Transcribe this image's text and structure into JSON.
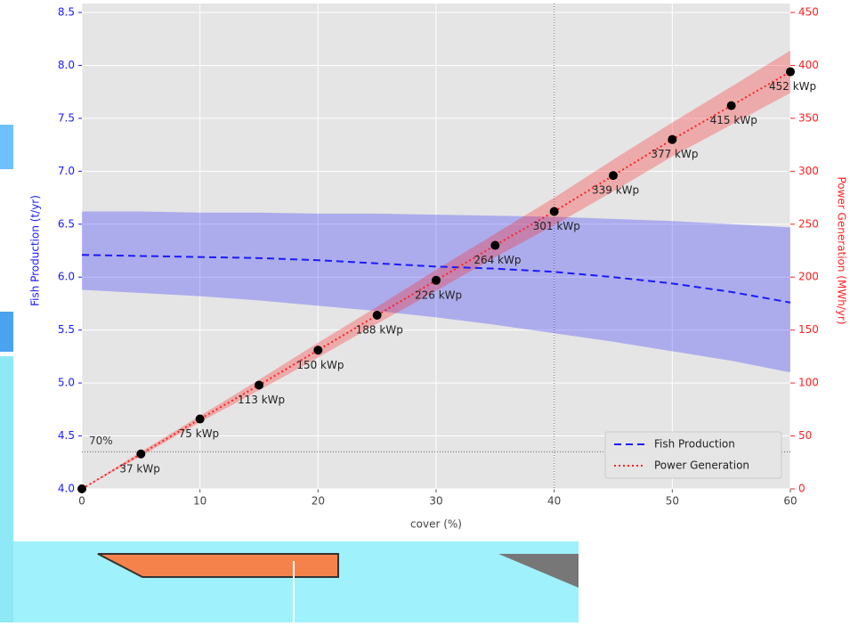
{
  "chart_data": {
    "type": "line",
    "x": [
      0,
      5,
      10,
      15,
      20,
      25,
      30,
      35,
      40,
      45,
      50,
      55,
      60
    ],
    "xlabel": "cover (%)",
    "ylabel": "Fish Production (t/yr)",
    "y2label": "Power Generation (MWh/yr)",
    "xlim": [
      0,
      60
    ],
    "xticks": [
      0,
      10,
      20,
      30,
      40,
      50,
      60
    ],
    "ylim": [
      4.0,
      8.5
    ],
    "yticks": [
      {
        "value": 4.0,
        "label": "4.0"
      },
      4.5,
      {
        "value": 5.0,
        "label": "5.0"
      },
      5.5,
      {
        "value": 6.0,
        "label": "6.0"
      },
      6.5,
      {
        "value": 7.0,
        "label": "7.0"
      },
      7.5,
      {
        "value": 8.0,
        "label": "8.0"
      },
      8.5
    ],
    "y2lim": [
      0,
      450
    ],
    "y2ticks": [
      0,
      50,
      100,
      150,
      200,
      250,
      300,
      350,
      400,
      450
    ],
    "grid": true,
    "legend": "lower right",
    "series": [
      {
        "name": "Fish Production",
        "color": "#1a1aff",
        "style": "dashed",
        "values": [
          6.21,
          6.2,
          6.19,
          6.18,
          6.16,
          6.13,
          6.1,
          6.08,
          6.05,
          6.0,
          5.94,
          5.86,
          5.76
        ],
        "band_upper": [
          6.62,
          6.62,
          6.61,
          6.61,
          6.6,
          6.6,
          6.59,
          6.58,
          6.57,
          6.55,
          6.53,
          6.5,
          6.47
        ],
        "band_lower": [
          5.88,
          5.85,
          5.82,
          5.78,
          5.73,
          5.68,
          5.62,
          5.55,
          5.47,
          5.39,
          5.3,
          5.21,
          5.1
        ]
      },
      {
        "name": "Power Generation",
        "color": "#ff2020",
        "style": "dotted",
        "axis": "y2",
        "values": [
          0,
          33,
          66,
          98,
          131,
          164,
          197,
          230,
          262,
          296,
          330,
          362,
          394
        ],
        "band_upper": [
          0,
          35,
          69,
          103,
          138,
          172,
          207,
          241,
          275,
          311,
          346,
          380,
          414
        ],
        "band_lower": [
          0,
          31,
          63,
          93,
          124,
          156,
          187,
          219,
          249,
          281,
          314,
          344,
          374
        ],
        "point_labels": [
          null,
          "37 kWp",
          "75 kWp",
          "113 kWp",
          "150 kWp",
          "188 kWp",
          "226 kWp",
          "264 kWp",
          "301 kWp",
          "339 kWp",
          "377 kWp",
          "415 kWp",
          "452 kWp"
        ]
      }
    ],
    "hline": {
      "value": 4.35,
      "label": "70%"
    },
    "vline": {
      "value": 40
    }
  }
}
